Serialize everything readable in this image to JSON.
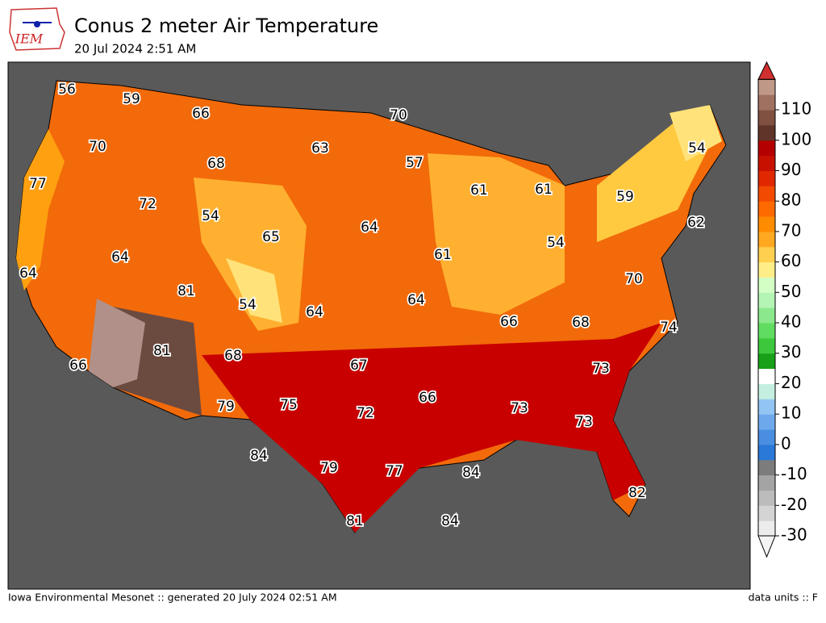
{
  "header": {
    "logo": "IEM",
    "title": "Conus 2 meter Air Temperature",
    "subtitle": "20 Jul 2024 2:51 AM"
  },
  "map": {
    "labels": [
      56,
      59,
      66,
      70,
      70,
      63,
      57,
      68,
      77,
      72,
      61,
      61,
      59,
      54,
      54,
      62,
      65,
      64,
      54,
      64,
      61,
      64,
      81,
      54,
      70,
      64,
      64,
      66,
      68,
      74,
      81,
      68,
      67,
      73,
      66,
      66,
      79,
      75,
      72,
      73,
      73,
      84,
      79,
      77,
      84,
      82,
      81,
      84
    ]
  },
  "colorbar": {
    "ticks": [
      110,
      100,
      90,
      80,
      70,
      60,
      50,
      40,
      30,
      20,
      10,
      0,
      -10,
      -20,
      -30
    ]
  },
  "footer": {
    "left": "Iowa Environmental Mesonet :: generated 20 July 2024 02:51 AM",
    "right": "data units :: F"
  }
}
